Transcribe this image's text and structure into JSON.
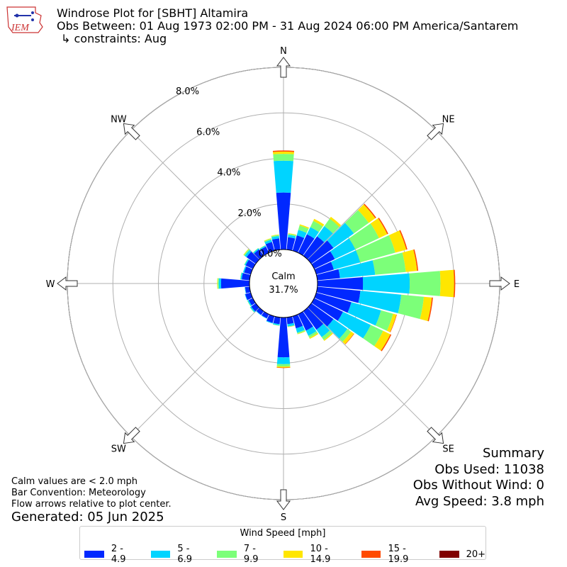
{
  "header": {
    "line1": "Windrose Plot for [SBHT] Altamira",
    "line2": "Obs Between: 01 Aug 1973 02:00 PM - 31 Aug 2024 06:00 PM America/Santarem",
    "line3": "↳ constraints: Aug",
    "logo_text": "IEM"
  },
  "colors": {
    "bins": [
      "#0028ff",
      "#00d4ff",
      "#7cff79",
      "#ffe600",
      "#ff4a00",
      "#800000"
    ]
  },
  "chart_data": {
    "type": "windrose",
    "calm_label": "Calm",
    "calm_value": "31.7%",
    "rings": [
      {
        "value": 0,
        "label": "0.0%"
      },
      {
        "value": 2,
        "label": "2.0%"
      },
      {
        "value": 4,
        "label": "4.0%"
      },
      {
        "value": 6,
        "label": "6.0%"
      },
      {
        "value": 8,
        "label": "8.0%"
      }
    ],
    "rmax": 8.0,
    "cardinals": [
      "N",
      "NE",
      "E",
      "SE",
      "S",
      "SW",
      "W",
      "NW"
    ],
    "speed_bins": [
      "2 - 4.9",
      "5 - 6.9",
      "7 - 9.9",
      "10 - 14.9",
      "15 - 19.9",
      "20+"
    ],
    "series": [
      {
        "dir": 0,
        "values": [
          2.5,
          1.4,
          0.3,
          0.1,
          0.05,
          0
        ]
      },
      {
        "dir": 10,
        "values": [
          0.55,
          0.1,
          0.05,
          0.02,
          0,
          0
        ]
      },
      {
        "dir": 20,
        "values": [
          0.7,
          0.25,
          0.2,
          0.05,
          0,
          0
        ]
      },
      {
        "dir": 30,
        "values": [
          0.9,
          0.35,
          0.3,
          0.1,
          0,
          0
        ]
      },
      {
        "dir": 40,
        "values": [
          1.05,
          0.55,
          0.4,
          0.1,
          0,
          0
        ]
      },
      {
        "dir": 50,
        "values": [
          1.2,
          1.1,
          0.8,
          0.35,
          0.05,
          0
        ]
      },
      {
        "dir": 60,
        "values": [
          1.0,
          1.0,
          1.15,
          0.4,
          0.05,
          0
        ]
      },
      {
        "dir": 70,
        "values": [
          0.8,
          1.2,
          1.6,
          0.5,
          0.05,
          0
        ]
      },
      {
        "dir": 80,
        "values": [
          1.0,
          1.55,
          1.35,
          0.5,
          0.05,
          0
        ]
      },
      {
        "dir": 90,
        "values": [
          2.0,
          2.05,
          1.35,
          0.6,
          0.05,
          0
        ]
      },
      {
        "dir": 100,
        "values": [
          1.9,
          1.8,
          1.0,
          0.35,
          0.05,
          0
        ]
      },
      {
        "dir": 110,
        "values": [
          1.6,
          1.35,
          0.55,
          0.15,
          0.02,
          0
        ]
      },
      {
        "dir": 120,
        "values": [
          1.4,
          1.35,
          0.6,
          0.35,
          0.05,
          0
        ]
      },
      {
        "dir": 130,
        "values": [
          1.2,
          0.75,
          0.2,
          0.15,
          0.02,
          0
        ]
      },
      {
        "dir": 140,
        "values": [
          1.0,
          0.4,
          0.15,
          0.05,
          0,
          0
        ]
      },
      {
        "dir": 150,
        "values": [
          0.8,
          0.25,
          0.1,
          0.05,
          0,
          0
        ]
      },
      {
        "dir": 160,
        "values": [
          0.55,
          0.2,
          0.05,
          0.02,
          0,
          0
        ]
      },
      {
        "dir": 170,
        "values": [
          0.3,
          0.1,
          0.02,
          0.01,
          0,
          0
        ]
      },
      {
        "dir": 180,
        "values": [
          1.75,
          0.3,
          0.1,
          0.05,
          0.02,
          0
        ]
      },
      {
        "dir": 190,
        "values": [
          0.3,
          0.05,
          0.02,
          0,
          0,
          0
        ]
      },
      {
        "dir": 200,
        "values": [
          0.3,
          0.03,
          0,
          0,
          0,
          0
        ]
      },
      {
        "dir": 210,
        "values": [
          0.2,
          0.02,
          0,
          0,
          0,
          0
        ]
      },
      {
        "dir": 220,
        "values": [
          0.2,
          0.02,
          0,
          0,
          0,
          0
        ]
      },
      {
        "dir": 230,
        "values": [
          0.25,
          0.05,
          0.02,
          0,
          0,
          0
        ]
      },
      {
        "dir": 240,
        "values": [
          0.2,
          0.05,
          0.02,
          0,
          0,
          0
        ]
      },
      {
        "dir": 250,
        "values": [
          0.25,
          0.02,
          0,
          0,
          0,
          0
        ]
      },
      {
        "dir": 260,
        "values": [
          0.2,
          0.02,
          0,
          0,
          0,
          0
        ]
      },
      {
        "dir": 270,
        "values": [
          1.25,
          0.1,
          0.05,
          0.02,
          0,
          0
        ]
      },
      {
        "dir": 280,
        "values": [
          0.35,
          0.05,
          0.02,
          0,
          0,
          0
        ]
      },
      {
        "dir": 290,
        "values": [
          0.3,
          0.05,
          0,
          0,
          0,
          0
        ]
      },
      {
        "dir": 300,
        "values": [
          0.35,
          0.05,
          0.02,
          0,
          0,
          0
        ]
      },
      {
        "dir": 310,
        "values": [
          0.5,
          0.1,
          0.05,
          0.02,
          0,
          0
        ]
      },
      {
        "dir": 320,
        "values": [
          0.35,
          0.05,
          0.02,
          0,
          0,
          0
        ]
      },
      {
        "dir": 330,
        "values": [
          0.3,
          0.05,
          0.02,
          0,
          0,
          0
        ]
      },
      {
        "dir": 340,
        "values": [
          0.4,
          0.1,
          0.05,
          0.02,
          0,
          0
        ]
      },
      {
        "dir": 350,
        "values": [
          0.5,
          0.1,
          0.05,
          0.02,
          0,
          0
        ]
      }
    ]
  },
  "footer": {
    "note1": "Calm values are < 2.0 mph",
    "note2": "Bar Convention: Meteorology",
    "note3": "Flow arrows relative to plot center.",
    "generated": "Generated: 05 Jun 2025"
  },
  "summary": {
    "title": "Summary",
    "obs_used": "Obs Used: 11038",
    "obs_without_wind": "Obs Without Wind: 0",
    "avg_speed": "Avg Speed: 3.8 mph"
  },
  "legend": {
    "title": "Wind Speed [mph]"
  }
}
